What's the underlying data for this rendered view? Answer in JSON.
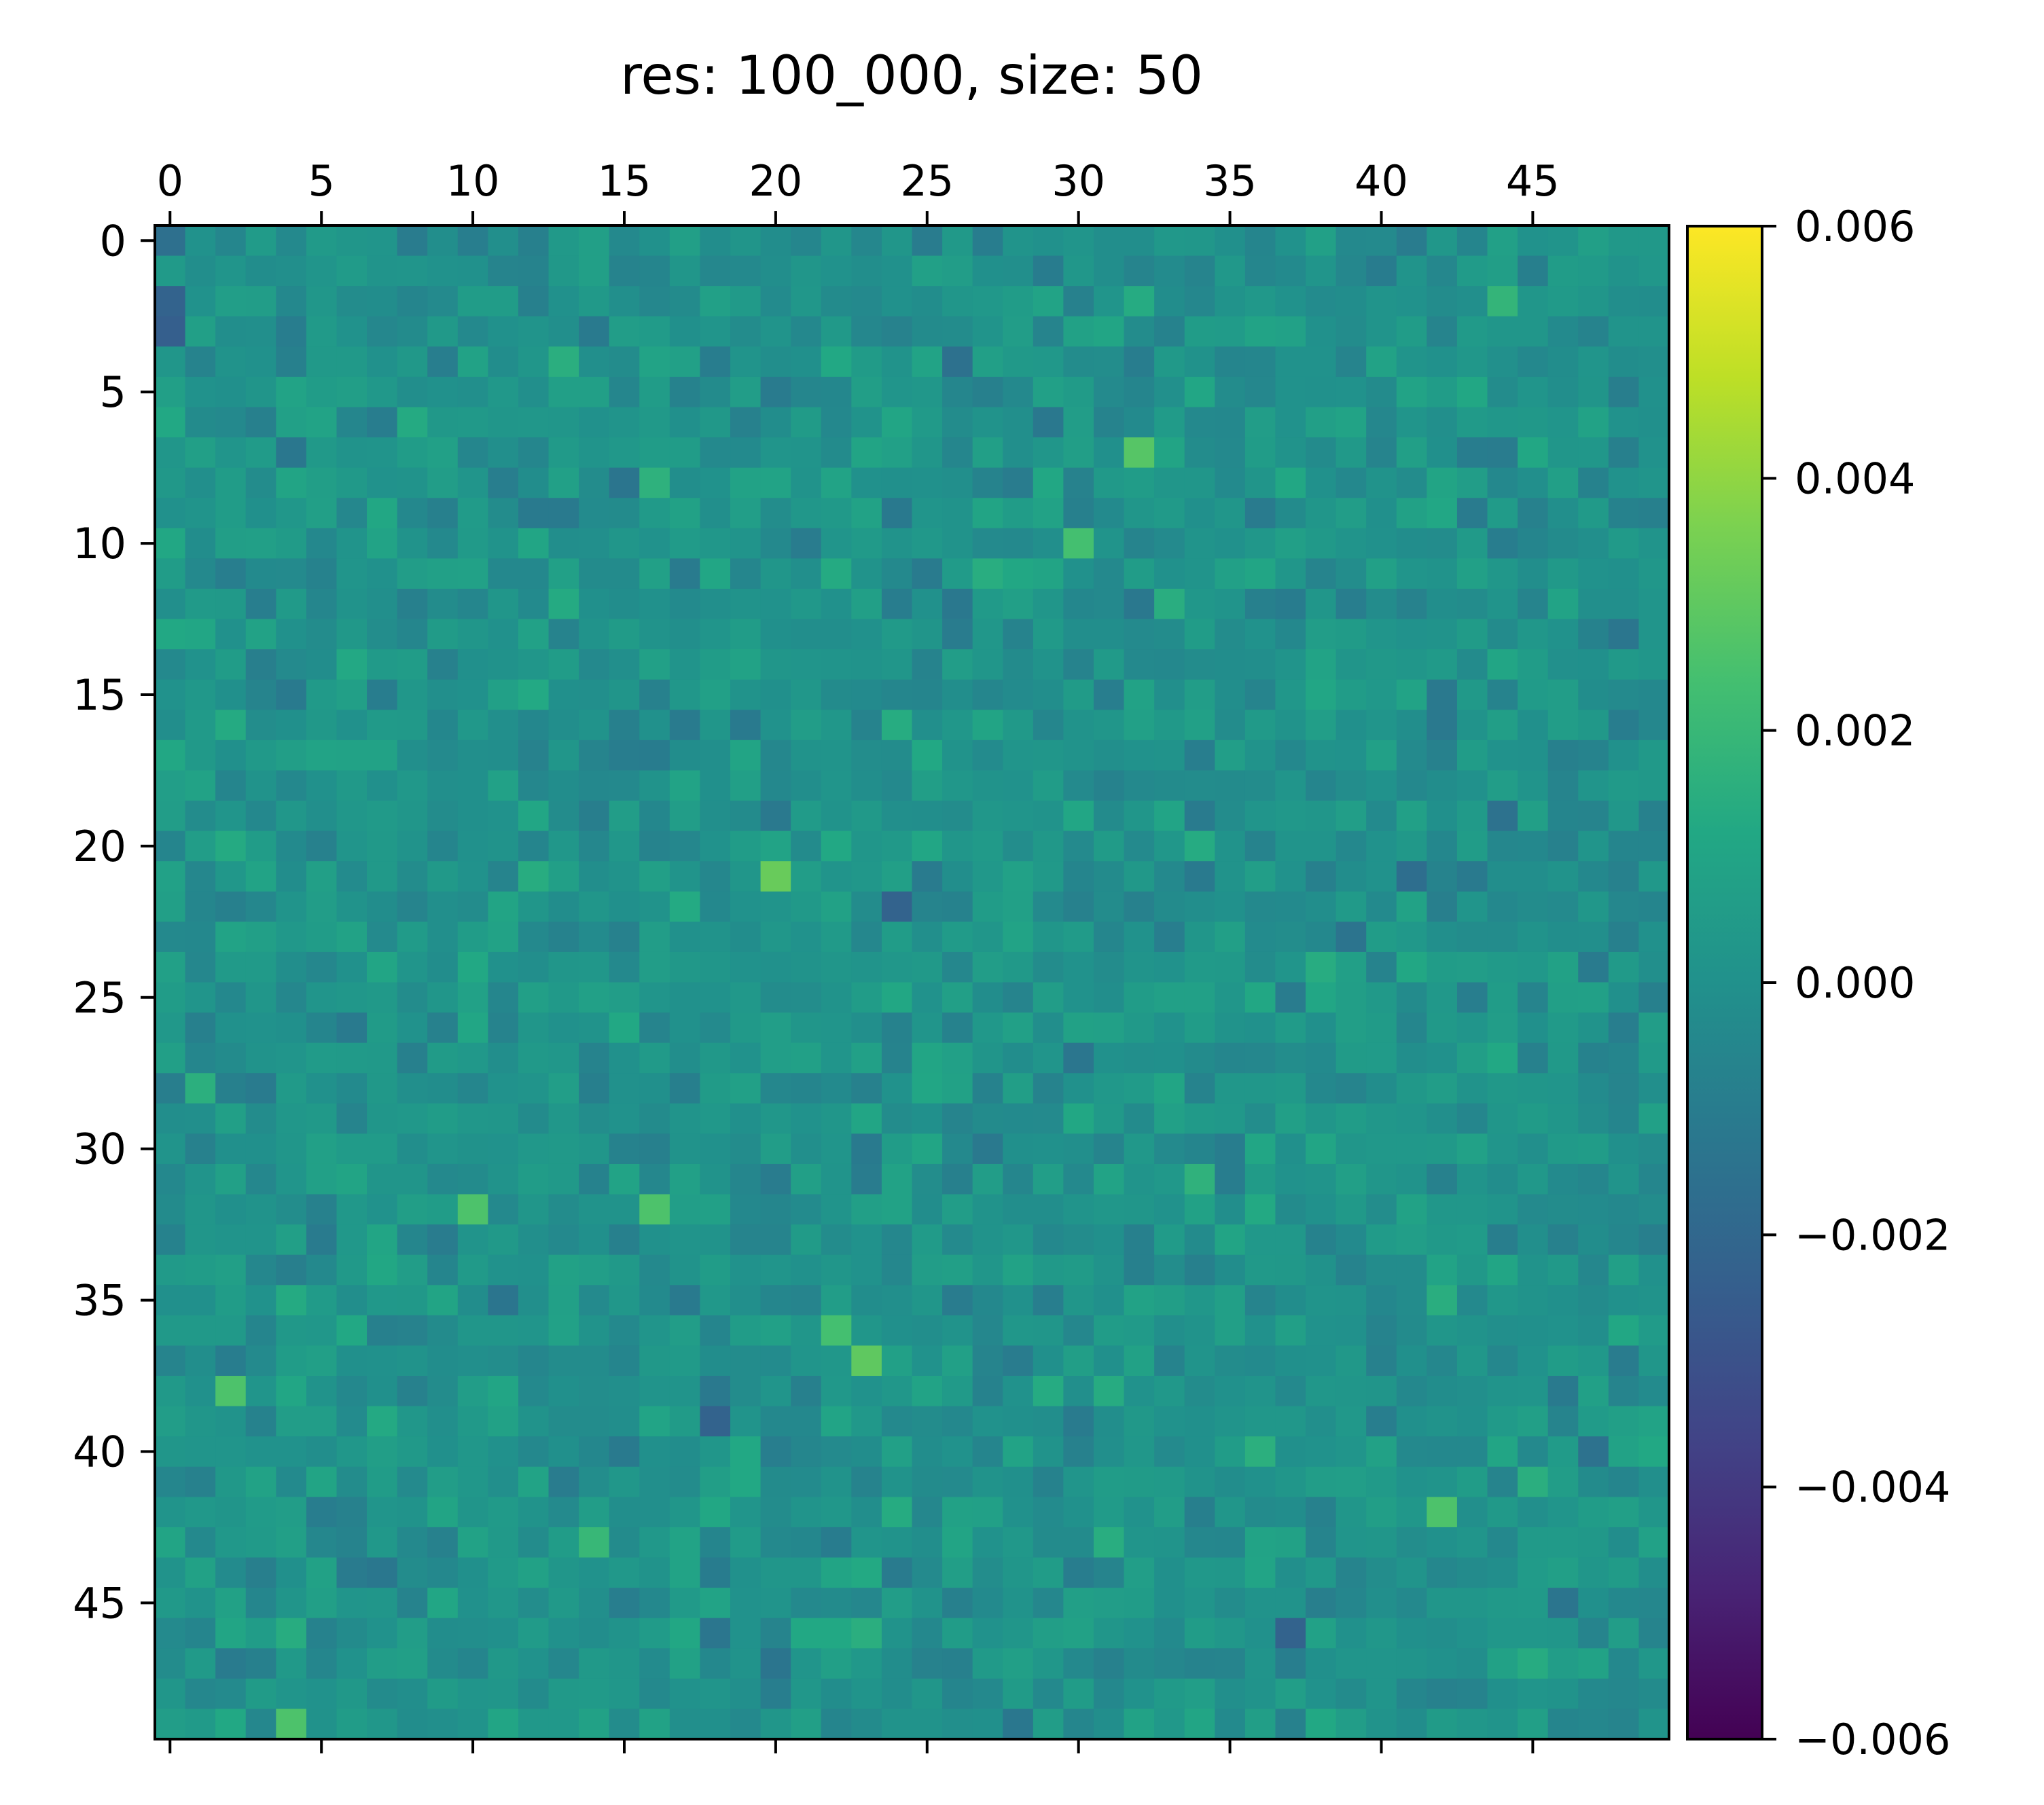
{
  "chart_data": {
    "type": "heatmap",
    "title": "res: 100_000, size: 50",
    "xlabel": "",
    "ylabel": "",
    "rows": 50,
    "cols": 50,
    "x_ticks": [
      0,
      5,
      10,
      15,
      20,
      25,
      30,
      35,
      40,
      45
    ],
    "x_tick_labels": [
      "0",
      "5",
      "10",
      "15",
      "20",
      "25",
      "30",
      "35",
      "40",
      "45"
    ],
    "y_ticks": [
      0,
      5,
      10,
      15,
      20,
      25,
      30,
      35,
      40,
      45
    ],
    "y_tick_labels": [
      "0",
      "5",
      "10",
      "15",
      "20",
      "25",
      "30",
      "35",
      "40",
      "45"
    ],
    "x_axis_position": "top",
    "colormap": "viridis",
    "colorbar": {
      "min": -0.006,
      "max": 0.006,
      "ticks": [
        -0.006,
        -0.004,
        -0.002,
        0.0,
        0.002,
        0.004,
        0.006
      ],
      "tick_labels": [
        "−0.006",
        "−0.004",
        "−0.002",
        "0.000",
        "0.002",
        "0.004",
        "0.006"
      ],
      "position": "right"
    },
    "value_distribution": "approximately uniform noise, mean ≈ 0.0000, std ≈ 0.0008",
    "notable_cells": [
      {
        "row": 0,
        "col": 0,
        "value": -0.0016
      },
      {
        "row": 2,
        "col": 0,
        "value": -0.0022
      },
      {
        "row": 3,
        "col": 0,
        "value": -0.0024
      },
      {
        "row": 7,
        "col": 32,
        "value": 0.0028
      },
      {
        "row": 10,
        "col": 30,
        "value": 0.0024
      },
      {
        "row": 21,
        "col": 20,
        "value": 0.0032
      },
      {
        "row": 22,
        "col": 24,
        "value": -0.0022
      },
      {
        "row": 32,
        "col": 10,
        "value": 0.0026
      },
      {
        "row": 32,
        "col": 16,
        "value": 0.0026
      },
      {
        "row": 36,
        "col": 22,
        "value": 0.0024
      },
      {
        "row": 37,
        "col": 23,
        "value": 0.003
      },
      {
        "row": 38,
        "col": 2,
        "value": 0.0026
      },
      {
        "row": 39,
        "col": 18,
        "value": -0.0022
      },
      {
        "row": 42,
        "col": 42,
        "value": 0.0026
      },
      {
        "row": 46,
        "col": 37,
        "value": -0.0022
      },
      {
        "row": 49,
        "col": 4,
        "value": 0.0026
      }
    ]
  }
}
